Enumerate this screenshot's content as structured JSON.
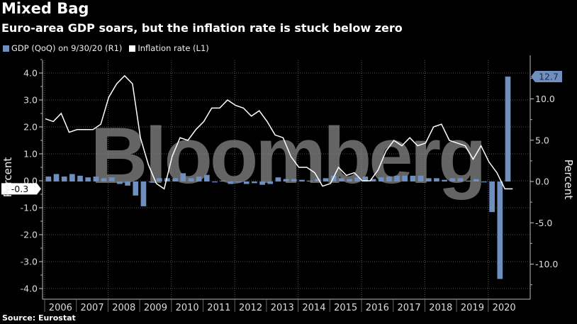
{
  "header": {
    "title": "Mixed Bag",
    "subtitle": "Euro-area GDP soars, but the inflation rate is stuck below zero"
  },
  "legend": [
    {
      "label": "GDP (QoQ) on 9/30/20 (R1)",
      "color": "#6f8fbf"
    },
    {
      "label": "Inflation rate (L1)",
      "color": "#ffffff"
    }
  ],
  "source": "Source: Eurostat",
  "watermark": "Bloomberg",
  "chart_data": {
    "type": "bar+line",
    "x_categories": [
      "2006",
      "2007",
      "2008",
      "2009",
      "2010",
      "2011",
      "2012",
      "2013",
      "2014",
      "2015",
      "2016",
      "2017",
      "2018",
      "2019",
      "2020"
    ],
    "left_axis": {
      "label": "Percent",
      "ylim": [
        -4.4,
        4.5
      ],
      "ticks": [
        "4.0",
        "3.0",
        "2.0",
        "1.0",
        "0.0",
        "-1.0",
        "-2.0",
        "-3.0",
        "-4.0"
      ]
    },
    "right_axis": {
      "label": "Percent",
      "ylim": [
        -14.5,
        14.5
      ],
      "ticks": [
        "10.0",
        "5.0",
        "0.0",
        "-5.0",
        "-10.0"
      ]
    },
    "grid": true,
    "legend_position": "top-left",
    "series": [
      {
        "name": "GDP (QoQ) on 9/30/20 (R1)",
        "type": "bar",
        "axis": "right",
        "frequency": "quarterly",
        "start": "2006 Q1",
        "color": "#6f8fbf",
        "last_value_label": "12.7",
        "values": [
          0.6,
          0.9,
          0.6,
          0.9,
          0.7,
          0.5,
          0.6,
          0.4,
          0.5,
          -0.3,
          -0.5,
          -1.7,
          -3.0,
          -0.1,
          0.4,
          0.4,
          0.4,
          1.0,
          0.4,
          0.6,
          0.8,
          0.0,
          0.1,
          -0.3,
          -0.1,
          -0.3,
          -0.2,
          -0.4,
          -0.3,
          0.5,
          0.3,
          0.3,
          0.2,
          0.1,
          0.3,
          0.4,
          0.7,
          0.4,
          0.3,
          0.5,
          0.6,
          0.3,
          0.5,
          0.6,
          0.7,
          0.7,
          0.7,
          0.7,
          0.4,
          0.4,
          0.2,
          0.4,
          0.4,
          0.1,
          0.3,
          0.0,
          -3.7,
          -11.8,
          12.7
        ]
      },
      {
        "name": "Inflation rate (L1)",
        "type": "line",
        "axis": "left",
        "frequency": "quarterly",
        "start": "2006 Q1",
        "color": "#ffffff",
        "last_value_label": "-0.3",
        "values": [
          2.3,
          2.2,
          2.5,
          1.8,
          1.9,
          1.9,
          1.9,
          2.1,
          3.1,
          3.6,
          3.9,
          3.6,
          1.6,
          0.6,
          -0.1,
          -0.3,
          0.9,
          1.6,
          1.5,
          1.9,
          2.2,
          2.7,
          2.7,
          3.0,
          2.8,
          2.7,
          2.4,
          2.6,
          2.2,
          1.7,
          1.6,
          0.9,
          0.5,
          0.5,
          0.3,
          -0.2,
          -0.1,
          0.5,
          0.2,
          0.3,
          0.0,
          0.0,
          0.4,
          1.1,
          1.5,
          1.3,
          1.6,
          1.3,
          1.4,
          2.0,
          2.1,
          1.5,
          1.4,
          1.3,
          0.8,
          1.3,
          0.7,
          0.3,
          -0.3,
          -0.3
        ]
      }
    ]
  }
}
